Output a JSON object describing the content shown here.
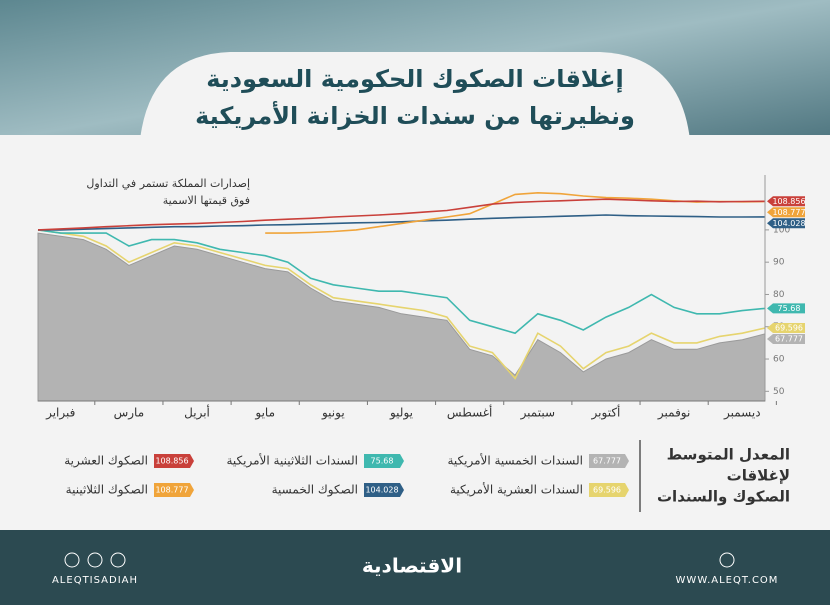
{
  "header": {
    "title": [
      "إغلاقات الصكوك الحكومية السعودية",
      "ونظيرتها من سندات الخزانة الأمريكية"
    ]
  },
  "chart_data": {
    "type": "line",
    "annotation": [
      "إصدارات المملكة تستمر في التداول",
      "فوق قيمتها الاسمية"
    ],
    "legend_title": [
      "المعدل المتوسط",
      "لإغلاقات",
      "الصكوك والسندات"
    ],
    "categories": [
      null,
      "فبراير",
      null,
      null,
      "مارس",
      null,
      null,
      "أبريل",
      null,
      null,
      "مايو",
      null,
      null,
      "يونيو",
      null,
      null,
      "يوليو",
      null,
      null,
      "أغسطس",
      null,
      null,
      "سبتمبر",
      null,
      null,
      "أكتوبر",
      null,
      null,
      "نوفمبر",
      null,
      null,
      "ديسمبر",
      null
    ],
    "ylim": [
      47,
      117
    ],
    "yticks": [
      50,
      60,
      70,
      80,
      90,
      100
    ],
    "series": [
      {
        "name": "الصكوك العشرية",
        "color": "#c9403a",
        "values": [
          100,
          100.3,
          100.6,
          101,
          101.3,
          101.6,
          101.8,
          102,
          102.3,
          102.6,
          103,
          103.3,
          103.6,
          104,
          104.3,
          104.6,
          105,
          105.5,
          106,
          107,
          108,
          108.5,
          108.8,
          109,
          109.3,
          109.5,
          109.3,
          109,
          108.8,
          108.9,
          108.7,
          108.8,
          108.856
        ]
      },
      {
        "name": "الصكوك الثلاثينية",
        "color": "#f0a43a",
        "values": [
          null,
          null,
          null,
          null,
          null,
          null,
          null,
          null,
          null,
          null,
          99,
          99,
          99.2,
          99.5,
          100,
          101,
          102,
          103,
          104,
          105,
          108,
          111,
          111.5,
          111.2,
          110.5,
          110,
          109.8,
          109.5,
          109,
          108.6,
          108.8,
          108.7,
          108.777
        ]
      },
      {
        "name": "الصكوك الخمسية",
        "color": "#2f5f86",
        "values": [
          100,
          100,
          100.2,
          100.4,
          100.6,
          100.8,
          101,
          101,
          101.2,
          101.3,
          101.5,
          101.6,
          101.8,
          102,
          102.2,
          102.3,
          102.5,
          102.8,
          103,
          103.3,
          103.6,
          103.8,
          104,
          104.2,
          104.4,
          104.6,
          104.4,
          104.3,
          104.2,
          104.1,
          104,
          104,
          104.028
        ]
      },
      {
        "name": "السندات الثلاثينية الأمريكية",
        "color": "#3fb8af",
        "values": [
          100,
          99,
          99,
          99,
          95,
          97,
          97,
          96,
          94,
          93,
          92,
          90,
          85,
          83,
          82,
          81,
          81,
          80,
          79,
          72,
          70,
          68,
          74,
          72,
          69,
          73,
          76,
          80,
          76,
          74,
          74,
          75,
          75.68
        ]
      },
      {
        "name": "السندات العشرية الأمريكية",
        "color": "#e6d46e",
        "values": [
          100,
          99,
          98,
          95,
          90,
          93,
          96,
          95,
          93,
          91,
          89,
          88,
          83,
          79,
          78,
          77,
          76,
          75,
          73,
          64,
          62,
          54,
          68,
          64,
          57,
          62,
          64,
          68,
          65,
          65,
          67,
          68,
          69.596
        ]
      },
      {
        "name": "السندات الخمسية الأمريكية",
        "color": "#b3b3b3",
        "area": true,
        "values": [
          99,
          98,
          97,
          94,
          89,
          92,
          95,
          94,
          92,
          90,
          88,
          87,
          82,
          78,
          77,
          76,
          74,
          73,
          72,
          63,
          61,
          55,
          66,
          62,
          56,
          60,
          62,
          66,
          63,
          63,
          65,
          66,
          67.777
        ]
      }
    ]
  },
  "footer": {
    "handle": "ALEQTISADIAH",
    "brand": "الاقتصادية",
    "site": "WWW.ALEQT.COM"
  }
}
